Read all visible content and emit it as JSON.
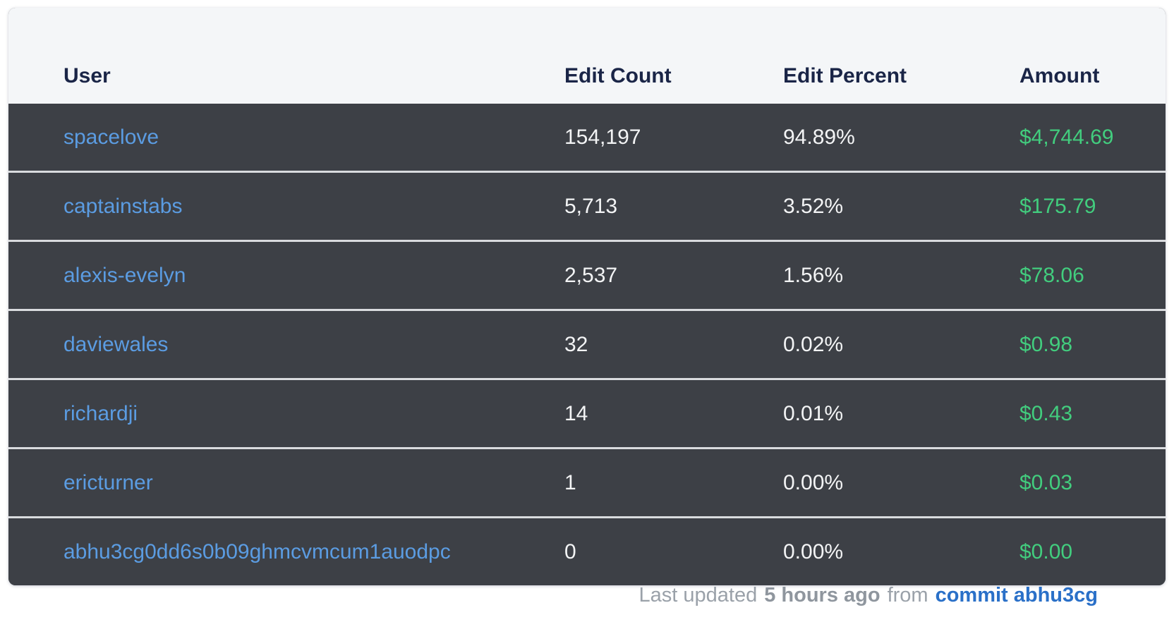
{
  "table": {
    "columns": [
      {
        "label": "User"
      },
      {
        "label": "Edit Count"
      },
      {
        "label": "Edit Percent"
      },
      {
        "label": "Amount"
      }
    ],
    "rows": [
      {
        "user": "spacelove",
        "edit_count": "154,197",
        "edit_percent": "94.89%",
        "amount": "$4,744.69"
      },
      {
        "user": "captainstabs",
        "edit_count": "5,713",
        "edit_percent": "3.52%",
        "amount": "$175.79"
      },
      {
        "user": "alexis-evelyn",
        "edit_count": "2,537",
        "edit_percent": "1.56%",
        "amount": "$78.06"
      },
      {
        "user": "daviewales",
        "edit_count": "32",
        "edit_percent": "0.02%",
        "amount": "$0.98"
      },
      {
        "user": "richardji",
        "edit_count": "14",
        "edit_percent": "0.01%",
        "amount": "$0.43"
      },
      {
        "user": "ericturner",
        "edit_count": "1",
        "edit_percent": "0.00%",
        "amount": "$0.03"
      },
      {
        "user": "abhu3cg0dd6s0b09ghmcvmcum1auodpc",
        "edit_count": "0",
        "edit_percent": "0.00%",
        "amount": "$0.00"
      }
    ]
  },
  "footer": {
    "prefix": "Last updated",
    "time": "5 hours ago",
    "from_word": "from",
    "commit_link": "commit abhu3cg"
  },
  "colors": {
    "row_background": "#3d4046",
    "header_background": "#f4f6f8",
    "header_text": "#1a2547",
    "link_blue": "#5b9ce2",
    "amount_green": "#42cd7e",
    "commit_blue": "#2a70c8",
    "footer_gray": "#9aa1a9",
    "divider": "#d9dbde"
  }
}
